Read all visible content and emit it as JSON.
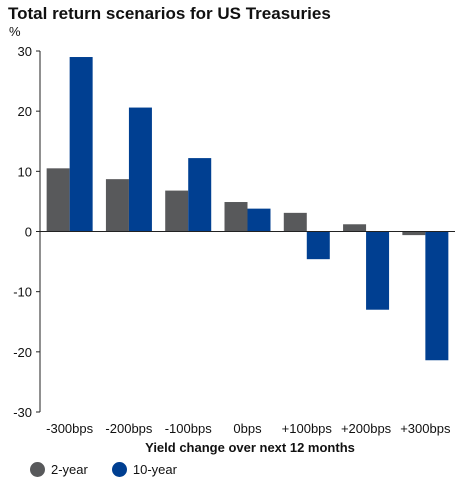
{
  "chart_data": {
    "type": "bar",
    "title": "Total return scenarios for US Treasuries",
    "unit_label": "%",
    "xlabel": "Yield change over next 12 months",
    "ylabel": "",
    "ylim": [
      -30,
      30
    ],
    "yticks": [
      30,
      20,
      10,
      0,
      -10,
      -20,
      -30
    ],
    "grid": false,
    "legend_position": "bottom-left",
    "categories": [
      "-300bps",
      "-200bps",
      "-100bps",
      "0bps",
      "+100bps",
      "+200bps",
      "+300bps"
    ],
    "series": [
      {
        "name": "2-year",
        "color": "#58595b",
        "values": [
          10.5,
          8.7,
          6.8,
          4.9,
          3.1,
          1.2,
          -0.6
        ]
      },
      {
        "name": "10-year",
        "color": "#003f91",
        "values": [
          29.0,
          20.6,
          12.2,
          3.8,
          -4.6,
          -13.0,
          -21.4
        ]
      }
    ]
  }
}
